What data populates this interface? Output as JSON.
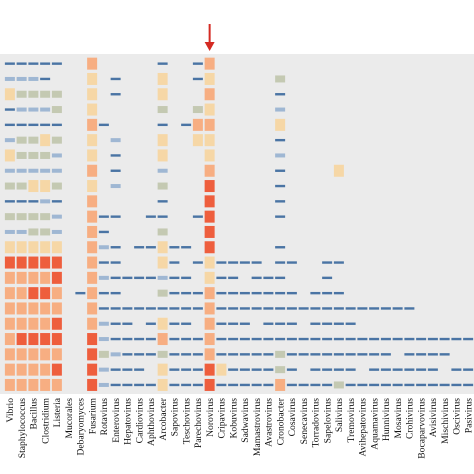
{
  "chart_data": {
    "type": "heatmap",
    "title": "",
    "xlabel": "",
    "ylabel": "",
    "columns": [
      "Vibrio",
      "Staphylococcus",
      "Bacillus",
      "Clostridium",
      "Listeria",
      "Mucorales",
      "Debaryomyces",
      "Fusarium",
      "Rotavirus",
      "Enterovirus",
      "Hepatovirus",
      "Cardiovirus",
      "Aphthovirus",
      "Arcobacter",
      "Sapovirus",
      "Teschovirus",
      "Parechovirus",
      "Norovirus",
      "Cripavirus",
      "Kobuvirus",
      "Sadwavirus",
      "Mamastrovirus",
      "Avastrovirus",
      "Cronobacter",
      "Cosavirus",
      "Senecavirus",
      "Torradovirus",
      "Sapelovirus",
      "Salivirus",
      "Tremovirus",
      "Avihepatovirus",
      "Aquamavirus",
      "Hunnivirus",
      "Mosavirus",
      "Crohivirus",
      "Bocaparvovirus",
      "Avisivirus",
      "Mischivirus",
      "Oscivirus",
      "Pasivirus"
    ],
    "row_count": 22,
    "level_scale": [
      "none",
      "very low",
      "low",
      "moderate",
      "medium",
      "high",
      "very high"
    ],
    "level_colors": [
      "#e8e8e8",
      "#4a74a4",
      "#9fb7d3",
      "#c4c9b2",
      "#f6d7a6",
      "#f7ae82",
      "#ee5e3d"
    ],
    "highlighted_column": "Norovirus",
    "arrow_icon": "red-down-arrow-icon",
    "values": [
      [
        1,
        1,
        1,
        1,
        1,
        0,
        0,
        5,
        0,
        0,
        0,
        0,
        0,
        1,
        0,
        0,
        1,
        5,
        0,
        0,
        0,
        0,
        0,
        0,
        0,
        0,
        0,
        0,
        0,
        0,
        0,
        0,
        0,
        0,
        0,
        0,
        0,
        0,
        0,
        0
      ],
      [
        2,
        2,
        2,
        1,
        0,
        0,
        0,
        4,
        0,
        1,
        0,
        0,
        0,
        4,
        0,
        0,
        1,
        4,
        0,
        0,
        0,
        0,
        0,
        3,
        0,
        0,
        0,
        0,
        0,
        0,
        0,
        0,
        0,
        0,
        0,
        0,
        0,
        0,
        0,
        0
      ],
      [
        4,
        3,
        3,
        3,
        3,
        0,
        0,
        4,
        0,
        1,
        0,
        0,
        0,
        4,
        0,
        0,
        0,
        5,
        0,
        0,
        0,
        0,
        0,
        1,
        0,
        0,
        0,
        0,
        0,
        0,
        0,
        0,
        0,
        0,
        0,
        0,
        0,
        0,
        0,
        0
      ],
      [
        1,
        2,
        2,
        2,
        3,
        0,
        0,
        4,
        0,
        0,
        0,
        0,
        0,
        3,
        0,
        0,
        3,
        4,
        0,
        0,
        0,
        0,
        0,
        2,
        0,
        0,
        0,
        0,
        0,
        0,
        0,
        0,
        0,
        0,
        0,
        0,
        0,
        0,
        0,
        0
      ],
      [
        1,
        1,
        1,
        1,
        1,
        0,
        0,
        5,
        1,
        0,
        0,
        0,
        0,
        1,
        0,
        1,
        5,
        5,
        0,
        0,
        0,
        0,
        0,
        4,
        0,
        0,
        0,
        0,
        0,
        0,
        0,
        0,
        0,
        0,
        0,
        0,
        0,
        0,
        0,
        0
      ],
      [
        2,
        3,
        3,
        4,
        3,
        0,
        0,
        4,
        0,
        2,
        0,
        0,
        0,
        4,
        0,
        0,
        4,
        4,
        0,
        0,
        0,
        0,
        0,
        1,
        0,
        0,
        0,
        0,
        0,
        0,
        0,
        0,
        0,
        0,
        0,
        0,
        0,
        0,
        0,
        0
      ],
      [
        4,
        3,
        3,
        3,
        2,
        0,
        0,
        4,
        0,
        1,
        0,
        0,
        0,
        4,
        0,
        0,
        0,
        4,
        0,
        0,
        0,
        0,
        0,
        2,
        0,
        0,
        0,
        0,
        0,
        0,
        0,
        0,
        0,
        0,
        0,
        0,
        0,
        0,
        0,
        0
      ],
      [
        2,
        2,
        2,
        2,
        2,
        0,
        0,
        5,
        0,
        1,
        0,
        0,
        0,
        2,
        0,
        0,
        0,
        5,
        0,
        0,
        0,
        0,
        0,
        1,
        0,
        0,
        0,
        0,
        4,
        0,
        0,
        0,
        0,
        0,
        0,
        0,
        0,
        0,
        0,
        0
      ],
      [
        3,
        3,
        4,
        4,
        3,
        0,
        0,
        4,
        0,
        2,
        0,
        0,
        0,
        3,
        0,
        0,
        0,
        6,
        0,
        0,
        0,
        0,
        0,
        1,
        0,
        0,
        0,
        0,
        0,
        0,
        0,
        0,
        0,
        0,
        0,
        0,
        0,
        0,
        0,
        0
      ],
      [
        1,
        1,
        1,
        2,
        1,
        0,
        0,
        5,
        0,
        0,
        0,
        0,
        0,
        1,
        0,
        0,
        0,
        6,
        0,
        0,
        0,
        0,
        0,
        1,
        0,
        0,
        0,
        0,
        0,
        0,
        0,
        0,
        0,
        0,
        0,
        0,
        0,
        0,
        0,
        0
      ],
      [
        3,
        3,
        3,
        3,
        2,
        0,
        0,
        5,
        1,
        1,
        0,
        0,
        1,
        1,
        0,
        0,
        1,
        6,
        0,
        0,
        0,
        0,
        0,
        1,
        0,
        0,
        0,
        0,
        0,
        0,
        0,
        0,
        0,
        0,
        0,
        0,
        0,
        0,
        0,
        0
      ],
      [
        2,
        2,
        3,
        3,
        2,
        0,
        0,
        5,
        1,
        0,
        0,
        0,
        0,
        3,
        0,
        0,
        0,
        6,
        0,
        0,
        0,
        0,
        0,
        0,
        0,
        0,
        0,
        0,
        0,
        0,
        0,
        0,
        0,
        0,
        0,
        0,
        0,
        0,
        0,
        0
      ],
      [
        4,
        4,
        4,
        4,
        4,
        0,
        0,
        5,
        2,
        1,
        0,
        1,
        1,
        4,
        1,
        1,
        0,
        6,
        0,
        0,
        0,
        0,
        0,
        1,
        0,
        0,
        0,
        0,
        0,
        0,
        0,
        0,
        0,
        0,
        0,
        0,
        0,
        0,
        0,
        0
      ],
      [
        6,
        6,
        6,
        6,
        6,
        0,
        0,
        5,
        1,
        1,
        0,
        0,
        0,
        4,
        1,
        0,
        1,
        4,
        1,
        1,
        1,
        1,
        0,
        1,
        1,
        0,
        0,
        1,
        1,
        0,
        0,
        0,
        0,
        0,
        0,
        0,
        0,
        0,
        0,
        0
      ],
      [
        5,
        5,
        5,
        5,
        6,
        0,
        0,
        5,
        2,
        1,
        1,
        1,
        1,
        2,
        1,
        1,
        0,
        4,
        1,
        1,
        0,
        1,
        1,
        1,
        0,
        0,
        0,
        1,
        0,
        0,
        0,
        0,
        0,
        0,
        0,
        0,
        0,
        0,
        0,
        0
      ],
      [
        5,
        5,
        6,
        6,
        5,
        0,
        1,
        5,
        1,
        1,
        0,
        0,
        0,
        3,
        1,
        1,
        1,
        5,
        1,
        1,
        1,
        1,
        1,
        1,
        1,
        0,
        1,
        1,
        1,
        0,
        0,
        0,
        0,
        0,
        0,
        0,
        0,
        0,
        0,
        0
      ],
      [
        5,
        5,
        5,
        5,
        5,
        0,
        0,
        5,
        1,
        1,
        1,
        1,
        1,
        1,
        1,
        1,
        1,
        5,
        1,
        1,
        1,
        1,
        1,
        1,
        1,
        1,
        1,
        1,
        1,
        1,
        1,
        1,
        1,
        1,
        1,
        0,
        0,
        0,
        0,
        0
      ],
      [
        5,
        5,
        5,
        5,
        6,
        0,
        0,
        5,
        2,
        1,
        1,
        0,
        1,
        4,
        1,
        1,
        0,
        5,
        1,
        1,
        1,
        0,
        1,
        1,
        1,
        0,
        1,
        1,
        1,
        1,
        0,
        0,
        0,
        0,
        0,
        0,
        0,
        0,
        0,
        0
      ],
      [
        5,
        6,
        6,
        6,
        6,
        0,
        0,
        6,
        2,
        1,
        1,
        1,
        1,
        5,
        1,
        1,
        1,
        5,
        1,
        1,
        1,
        1,
        1,
        1,
        1,
        1,
        1,
        1,
        1,
        1,
        1,
        1,
        1,
        1,
        1,
        1,
        1,
        1,
        1,
        1
      ],
      [
        5,
        5,
        5,
        5,
        5,
        0,
        0,
        6,
        3,
        2,
        1,
        1,
        1,
        3,
        1,
        1,
        1,
        5,
        1,
        1,
        1,
        1,
        1,
        3,
        1,
        1,
        1,
        1,
        1,
        1,
        1,
        1,
        1,
        0,
        1,
        1,
        1,
        1,
        0,
        0
      ],
      [
        5,
        5,
        5,
        5,
        6,
        0,
        0,
        6,
        2,
        1,
        1,
        1,
        0,
        4,
        1,
        1,
        1,
        6,
        4,
        1,
        1,
        1,
        1,
        3,
        1,
        0,
        1,
        1,
        1,
        1,
        0,
        1,
        1,
        1,
        1,
        1,
        1,
        0,
        1,
        1
      ],
      [
        5,
        5,
        5,
        5,
        5,
        0,
        0,
        6,
        2,
        1,
        1,
        1,
        1,
        4,
        1,
        1,
        1,
        6,
        1,
        1,
        1,
        1,
        1,
        5,
        1,
        1,
        1,
        1,
        3,
        1,
        1,
        1,
        1,
        1,
        1,
        1,
        1,
        1,
        1,
        1
      ]
    ]
  }
}
